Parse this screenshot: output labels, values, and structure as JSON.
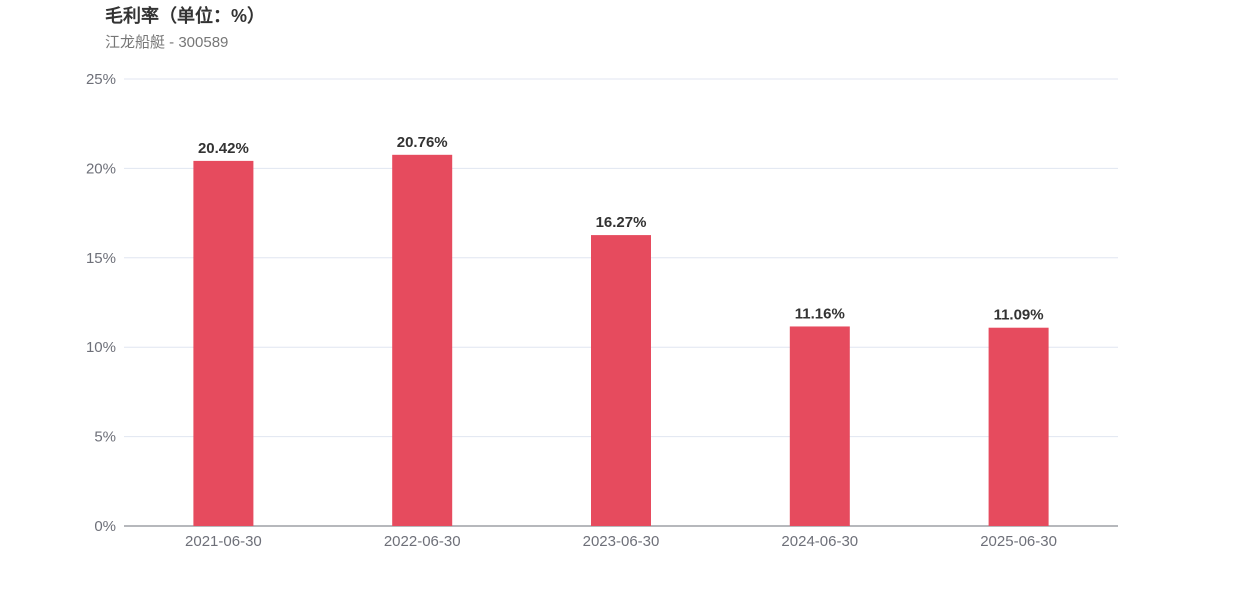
{
  "chart_data": {
    "type": "bar",
    "title": "毛利率（单位：%）",
    "subtitle": "江龙船艇 - 300589",
    "categories": [
      "2021-06-30",
      "2022-06-30",
      "2023-06-30",
      "2024-06-30",
      "2025-06-30"
    ],
    "values": [
      20.42,
      20.76,
      16.27,
      11.16,
      11.09
    ],
    "data_labels": [
      "20.42%",
      "20.76%",
      "16.27%",
      "11.16%",
      "11.09%"
    ],
    "y_ticks": [
      "0%",
      "5%",
      "10%",
      "15%",
      "20%",
      "25%"
    ],
    "ylim": [
      0,
      25
    ],
    "xlabel": "",
    "ylabel": "",
    "grid": true,
    "bar_color": "#e64b5e"
  }
}
